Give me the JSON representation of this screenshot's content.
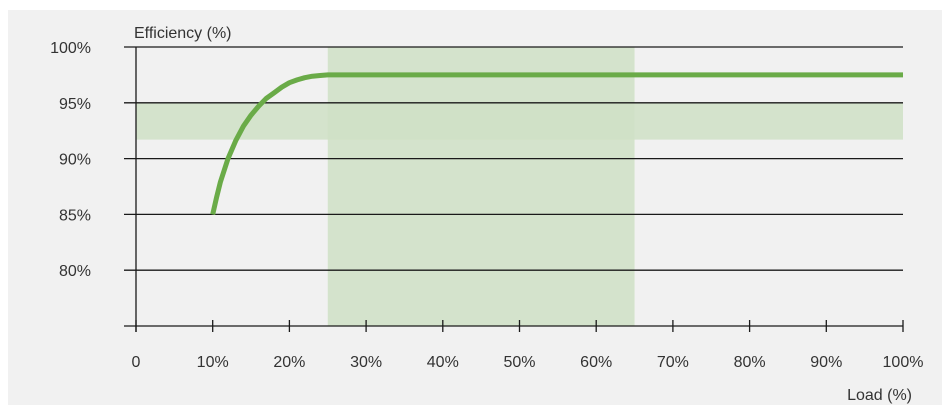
{
  "chart_data": {
    "type": "line",
    "ylabel": "Efficiency (%)",
    "xlabel": "Load (%)",
    "xlim": [
      0,
      100
    ],
    "ylim": [
      75,
      100
    ],
    "x_ticks": [
      0,
      10,
      20,
      30,
      40,
      50,
      60,
      70,
      80,
      90,
      100
    ],
    "x_tick_labels": [
      "0",
      "10%",
      "20%",
      "30%",
      "40%",
      "50%",
      "60%",
      "70%",
      "80%",
      "90%",
      "100%"
    ],
    "y_ticks": [
      80,
      85,
      90,
      95,
      100
    ],
    "y_tick_labels": [
      "80%",
      "85%",
      "90%",
      "95%",
      "100%"
    ],
    "gridlines": "horizontal",
    "series": [
      {
        "color": "#6aab48",
        "x": [
          10,
          10.5,
          11,
          12,
          13,
          14,
          15,
          16,
          17,
          18,
          19,
          20,
          21,
          22,
          23,
          24,
          25,
          30,
          40,
          50,
          60,
          70,
          80,
          90,
          100
        ],
        "y": [
          85,
          86.5,
          87.9,
          90.0,
          91.6,
          92.9,
          93.9,
          94.7,
          95.4,
          95.9,
          96.4,
          96.8,
          97.05,
          97.25,
          97.38,
          97.45,
          97.5,
          97.5,
          97.5,
          97.5,
          97.5,
          97.5,
          97.5,
          97.5,
          97.5
        ]
      }
    ],
    "bands": [
      {
        "orientation": "vertical",
        "from": 25,
        "to": 65,
        "color": "#cfe1c6"
      },
      {
        "orientation": "horizontal",
        "from": 91.7,
        "to": 95,
        "color": "#cfe1c6"
      }
    ]
  }
}
